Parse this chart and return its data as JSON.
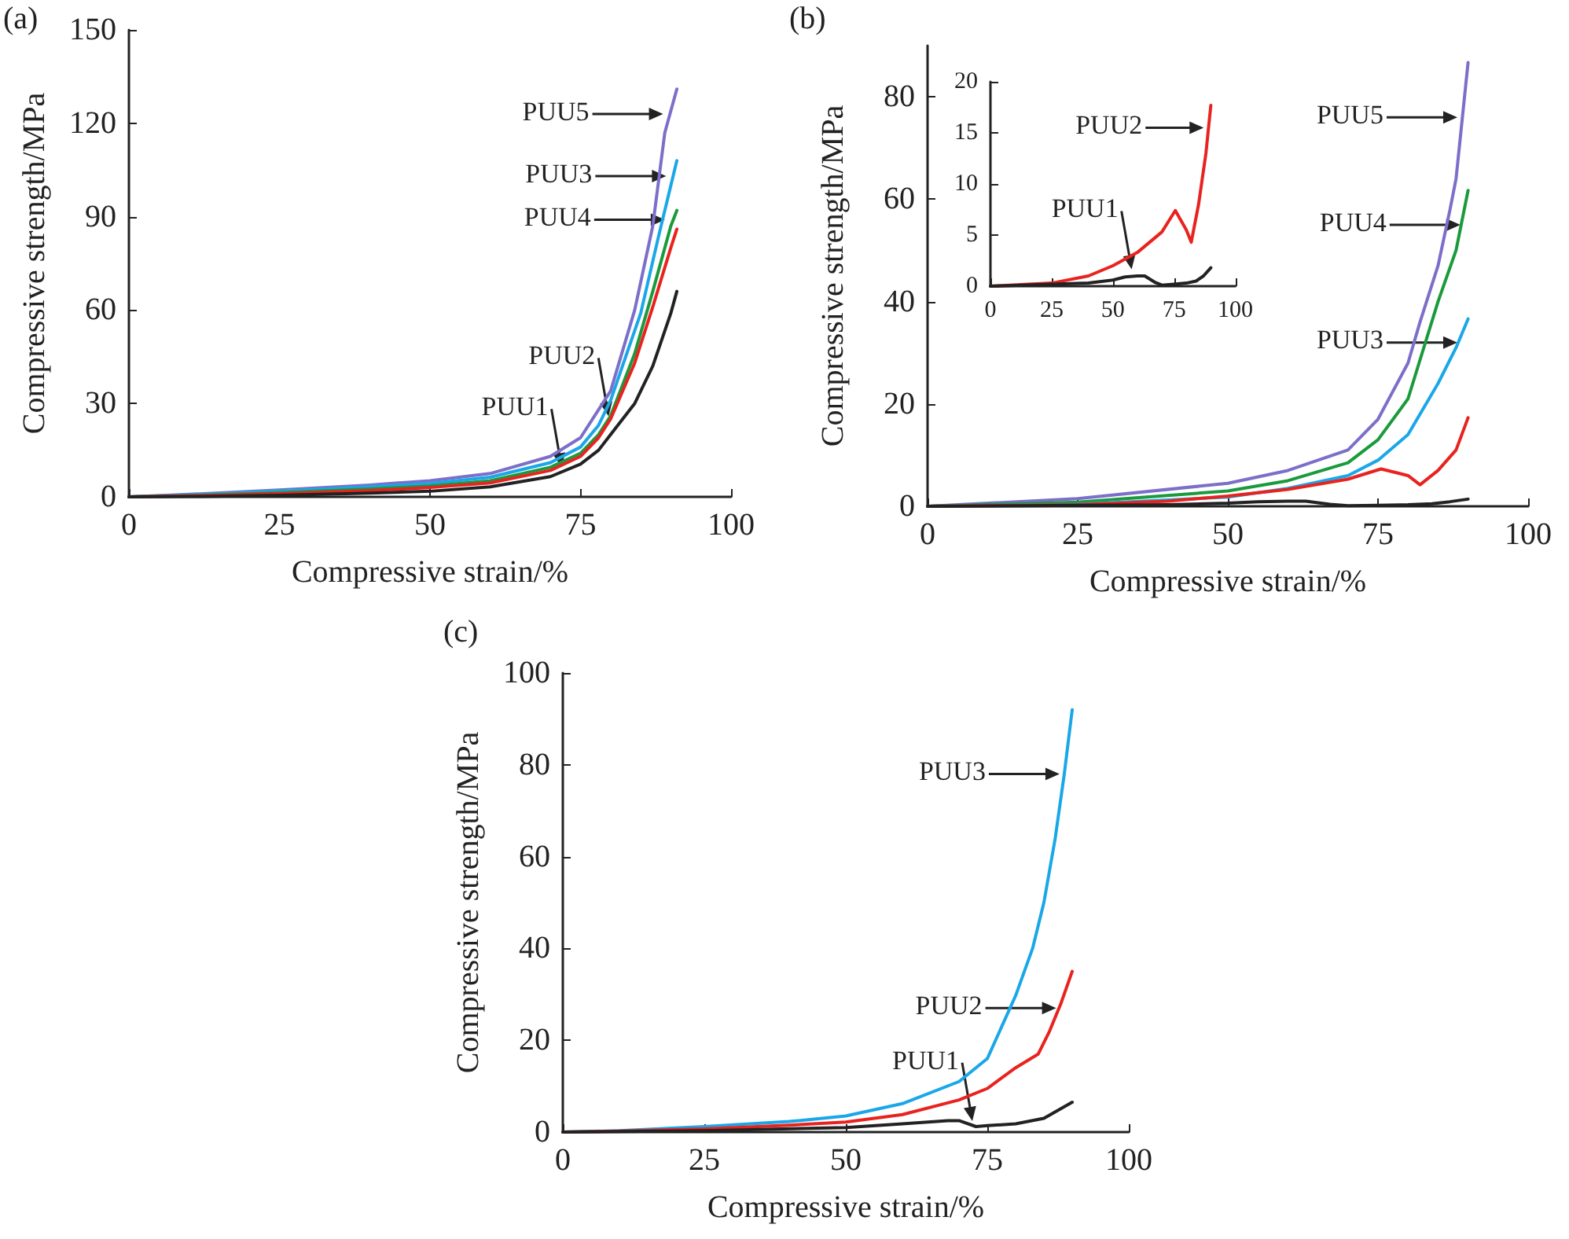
{
  "chart_data": [
    {
      "type": "line",
      "title": "(a)",
      "xlabel": "Compressive strain/%",
      "ylabel": "Compressive strength/MPa",
      "xlim": [
        0,
        100
      ],
      "xticks": [
        0,
        25,
        50,
        75,
        100
      ],
      "ylim": [
        0,
        150
      ],
      "yticks": [
        0,
        30,
        60,
        90,
        120,
        150
      ],
      "grid": false,
      "marker": "none",
      "series": [
        {
          "color": "#7b6fc9",
          "x": [
            0,
            10,
            25,
            40,
            50,
            60,
            70,
            75,
            78,
            80,
            84,
            87,
            89,
            91
          ],
          "values": [
            0,
            0.8,
            2.2,
            3.8,
            5.2,
            7.5,
            13,
            19,
            28,
            34,
            60,
            87,
            117,
            131
          ]
        },
        {
          "color": "#1aa7e8",
          "x": [
            0,
            10,
            25,
            40,
            50,
            60,
            70,
            75,
            78,
            80,
            85,
            88,
            90,
            91
          ],
          "values": [
            0,
            0.6,
            1.8,
            3.2,
            4.3,
            6.3,
            11,
            16,
            23,
            31,
            59,
            84,
            100,
            108
          ]
        },
        {
          "color": "#1a9a3c",
          "x": [
            0,
            10,
            25,
            40,
            50,
            60,
            70,
            75,
            78,
            80,
            84,
            87,
            90,
            91
          ],
          "values": [
            0,
            0.4,
            1.3,
            2.5,
            3.5,
            5.2,
            9.5,
            14,
            20,
            26,
            46,
            66,
            87,
            92
          ]
        },
        {
          "color": "#e8231f",
          "x": [
            0,
            10,
            25,
            40,
            50,
            60,
            70,
            75,
            78,
            80,
            84,
            87,
            90,
            91
          ],
          "values": [
            0,
            0.3,
            1,
            2,
            3,
            4.5,
            8.5,
            13,
            19,
            25,
            43,
            61,
            80,
            86
          ]
        },
        {
          "color": "#222222",
          "x": [
            0,
            10,
            25,
            40,
            50,
            60,
            70,
            75,
            78,
            80,
            84,
            87,
            90,
            91
          ],
          "values": [
            0,
            0.1,
            0.5,
            1.2,
            1.8,
            3.2,
            6.5,
            10.5,
            15,
            20,
            30,
            42,
            59,
            66
          ]
        }
      ],
      "annotations": [
        {
          "text": "PUU5",
          "x": 89.5,
          "y": 123
        },
        {
          "text": "PUU3",
          "x": 90,
          "y": 103
        },
        {
          "text": "PUU4",
          "x": 89.8,
          "y": 89
        },
        {
          "text": "PUU2",
          "x": 79.8,
          "y": 24.4
        },
        {
          "text": "PUU1",
          "x": 72,
          "y": 8
        }
      ]
    },
    {
      "type": "line",
      "title": "(b)",
      "xlabel": "Compressive strain/%",
      "ylabel": "Compressive strength/MPa",
      "xlim": [
        0,
        100
      ],
      "xticks": [
        0,
        25,
        50,
        75,
        100
      ],
      "ylim": [
        0,
        90
      ],
      "yticks": [
        0,
        20,
        40,
        60,
        80
      ],
      "grid": false,
      "marker": "none",
      "series": [
        {
          "color": "#7b6fc9",
          "x": [
            0,
            25,
            50,
            60,
            70,
            75,
            80,
            82,
            85,
            87,
            88,
            90
          ],
          "values": [
            0,
            1.5,
            4.5,
            7,
            11,
            17,
            28,
            36,
            47,
            58,
            64,
            86.7
          ]
        },
        {
          "color": "#1a9a3c",
          "x": [
            0,
            25,
            50,
            60,
            70,
            75,
            80,
            85,
            88,
            90
          ],
          "values": [
            0,
            0.8,
            3,
            5,
            8.5,
            13,
            21,
            40,
            50,
            61.7
          ]
        },
        {
          "color": "#1aa7e8",
          "x": [
            0,
            25,
            50,
            60,
            70,
            75,
            80,
            85,
            88,
            90
          ],
          "values": [
            0,
            0.4,
            1.8,
            3.5,
            6,
            9,
            14,
            24,
            31,
            36.6
          ]
        },
        {
          "color": "#e8231f",
          "x": [
            0,
            25,
            40,
            50,
            60,
            70,
            75.5,
            80,
            82,
            85,
            88,
            90
          ],
          "values": [
            0,
            0.3,
            1,
            2,
            3.3,
            5.3,
            7.3,
            6,
            4.2,
            7,
            11,
            17.3
          ]
        },
        {
          "color": "#222222",
          "x": [
            0,
            40,
            50,
            55,
            60,
            63,
            67,
            70,
            75,
            80,
            84,
            87,
            90
          ],
          "values": [
            0,
            0.3,
            0.6,
            0.9,
            1,
            1,
            0.4,
            0.1,
            0.2,
            0.3,
            0.5,
            0.9,
            1.4
          ]
        }
      ],
      "annotations": [
        {
          "text": "PUU5",
          "x": 89,
          "y": 76
        },
        {
          "text": "PUU4",
          "x": 89.5,
          "y": 55
        },
        {
          "text": "PUU3",
          "x": 89,
          "y": 32
        }
      ]
    },
    {
      "type": "line",
      "xlim": [
        0,
        100
      ],
      "xticks": [
        0,
        25,
        50,
        75,
        100
      ],
      "ylim": [
        0,
        20
      ],
      "yticks": [
        0,
        5,
        10,
        15,
        20
      ],
      "grid": false,
      "marker": "none",
      "series": [
        {
          "color": "#e8231f",
          "x": [
            0,
            25,
            40,
            50,
            60,
            70,
            75.5,
            80,
            82,
            85,
            88,
            90
          ],
          "values": [
            0,
            0.3,
            1,
            2,
            3.3,
            5.3,
            7.4,
            5.5,
            4.3,
            8,
            13,
            17.7
          ]
        },
        {
          "color": "#222222",
          "x": [
            0,
            40,
            50,
            55,
            60,
            63,
            67,
            70,
            75,
            80,
            84,
            87,
            90
          ],
          "values": [
            0,
            0.3,
            0.6,
            0.9,
            1,
            1,
            0.4,
            0.1,
            0.2,
            0.3,
            0.5,
            1,
            1.8
          ]
        }
      ],
      "annotations": [
        {
          "text": "PUU2",
          "x": 89,
          "y": 15.5
        },
        {
          "text": "PUU1",
          "x": 58,
          "y": 1.2
        }
      ]
    },
    {
      "type": "line",
      "title": "(c)",
      "xlabel": "Compressive strain/%",
      "ylabel": "Compressive strength/MPa",
      "xlim": [
        0,
        100
      ],
      "xticks": [
        0,
        25,
        50,
        75,
        100
      ],
      "ylim": [
        0,
        100
      ],
      "yticks": [
        0,
        20,
        40,
        60,
        80,
        100
      ],
      "grid": false,
      "marker": "none",
      "series": [
        {
          "color": "#1aa7e8",
          "x": [
            0,
            10,
            25,
            40,
            50,
            60,
            70,
            75,
            80,
            83,
            85,
            87,
            88.6,
            90
          ],
          "values": [
            0,
            0.3,
            1.2,
            2.3,
            3.5,
            6.2,
            11,
            16,
            29.7,
            40,
            50,
            64,
            78,
            92
          ]
        },
        {
          "color": "#e8231f",
          "x": [
            0,
            10,
            25,
            40,
            50,
            60,
            70,
            75,
            80,
            84,
            86,
            88,
            90
          ],
          "values": [
            0,
            0.2,
            0.7,
            1.5,
            2.2,
            3.8,
            7,
            9.5,
            14,
            17,
            22,
            28,
            35
          ]
        },
        {
          "color": "#222222",
          "x": [
            0,
            25,
            50,
            60,
            68,
            70,
            73,
            75,
            80,
            85,
            90
          ],
          "values": [
            0,
            0.3,
            1,
            1.8,
            2.5,
            2.5,
            1.2,
            1.4,
            1.8,
            3,
            6.5
          ]
        }
      ],
      "annotations": [
        {
          "text": "PUU3",
          "x": 88.6,
          "y": 78
        },
        {
          "text": "PUU2",
          "x": 88,
          "y": 27
        },
        {
          "text": "PUU1",
          "x": 72.5,
          "y": 1.4
        }
      ]
    }
  ]
}
